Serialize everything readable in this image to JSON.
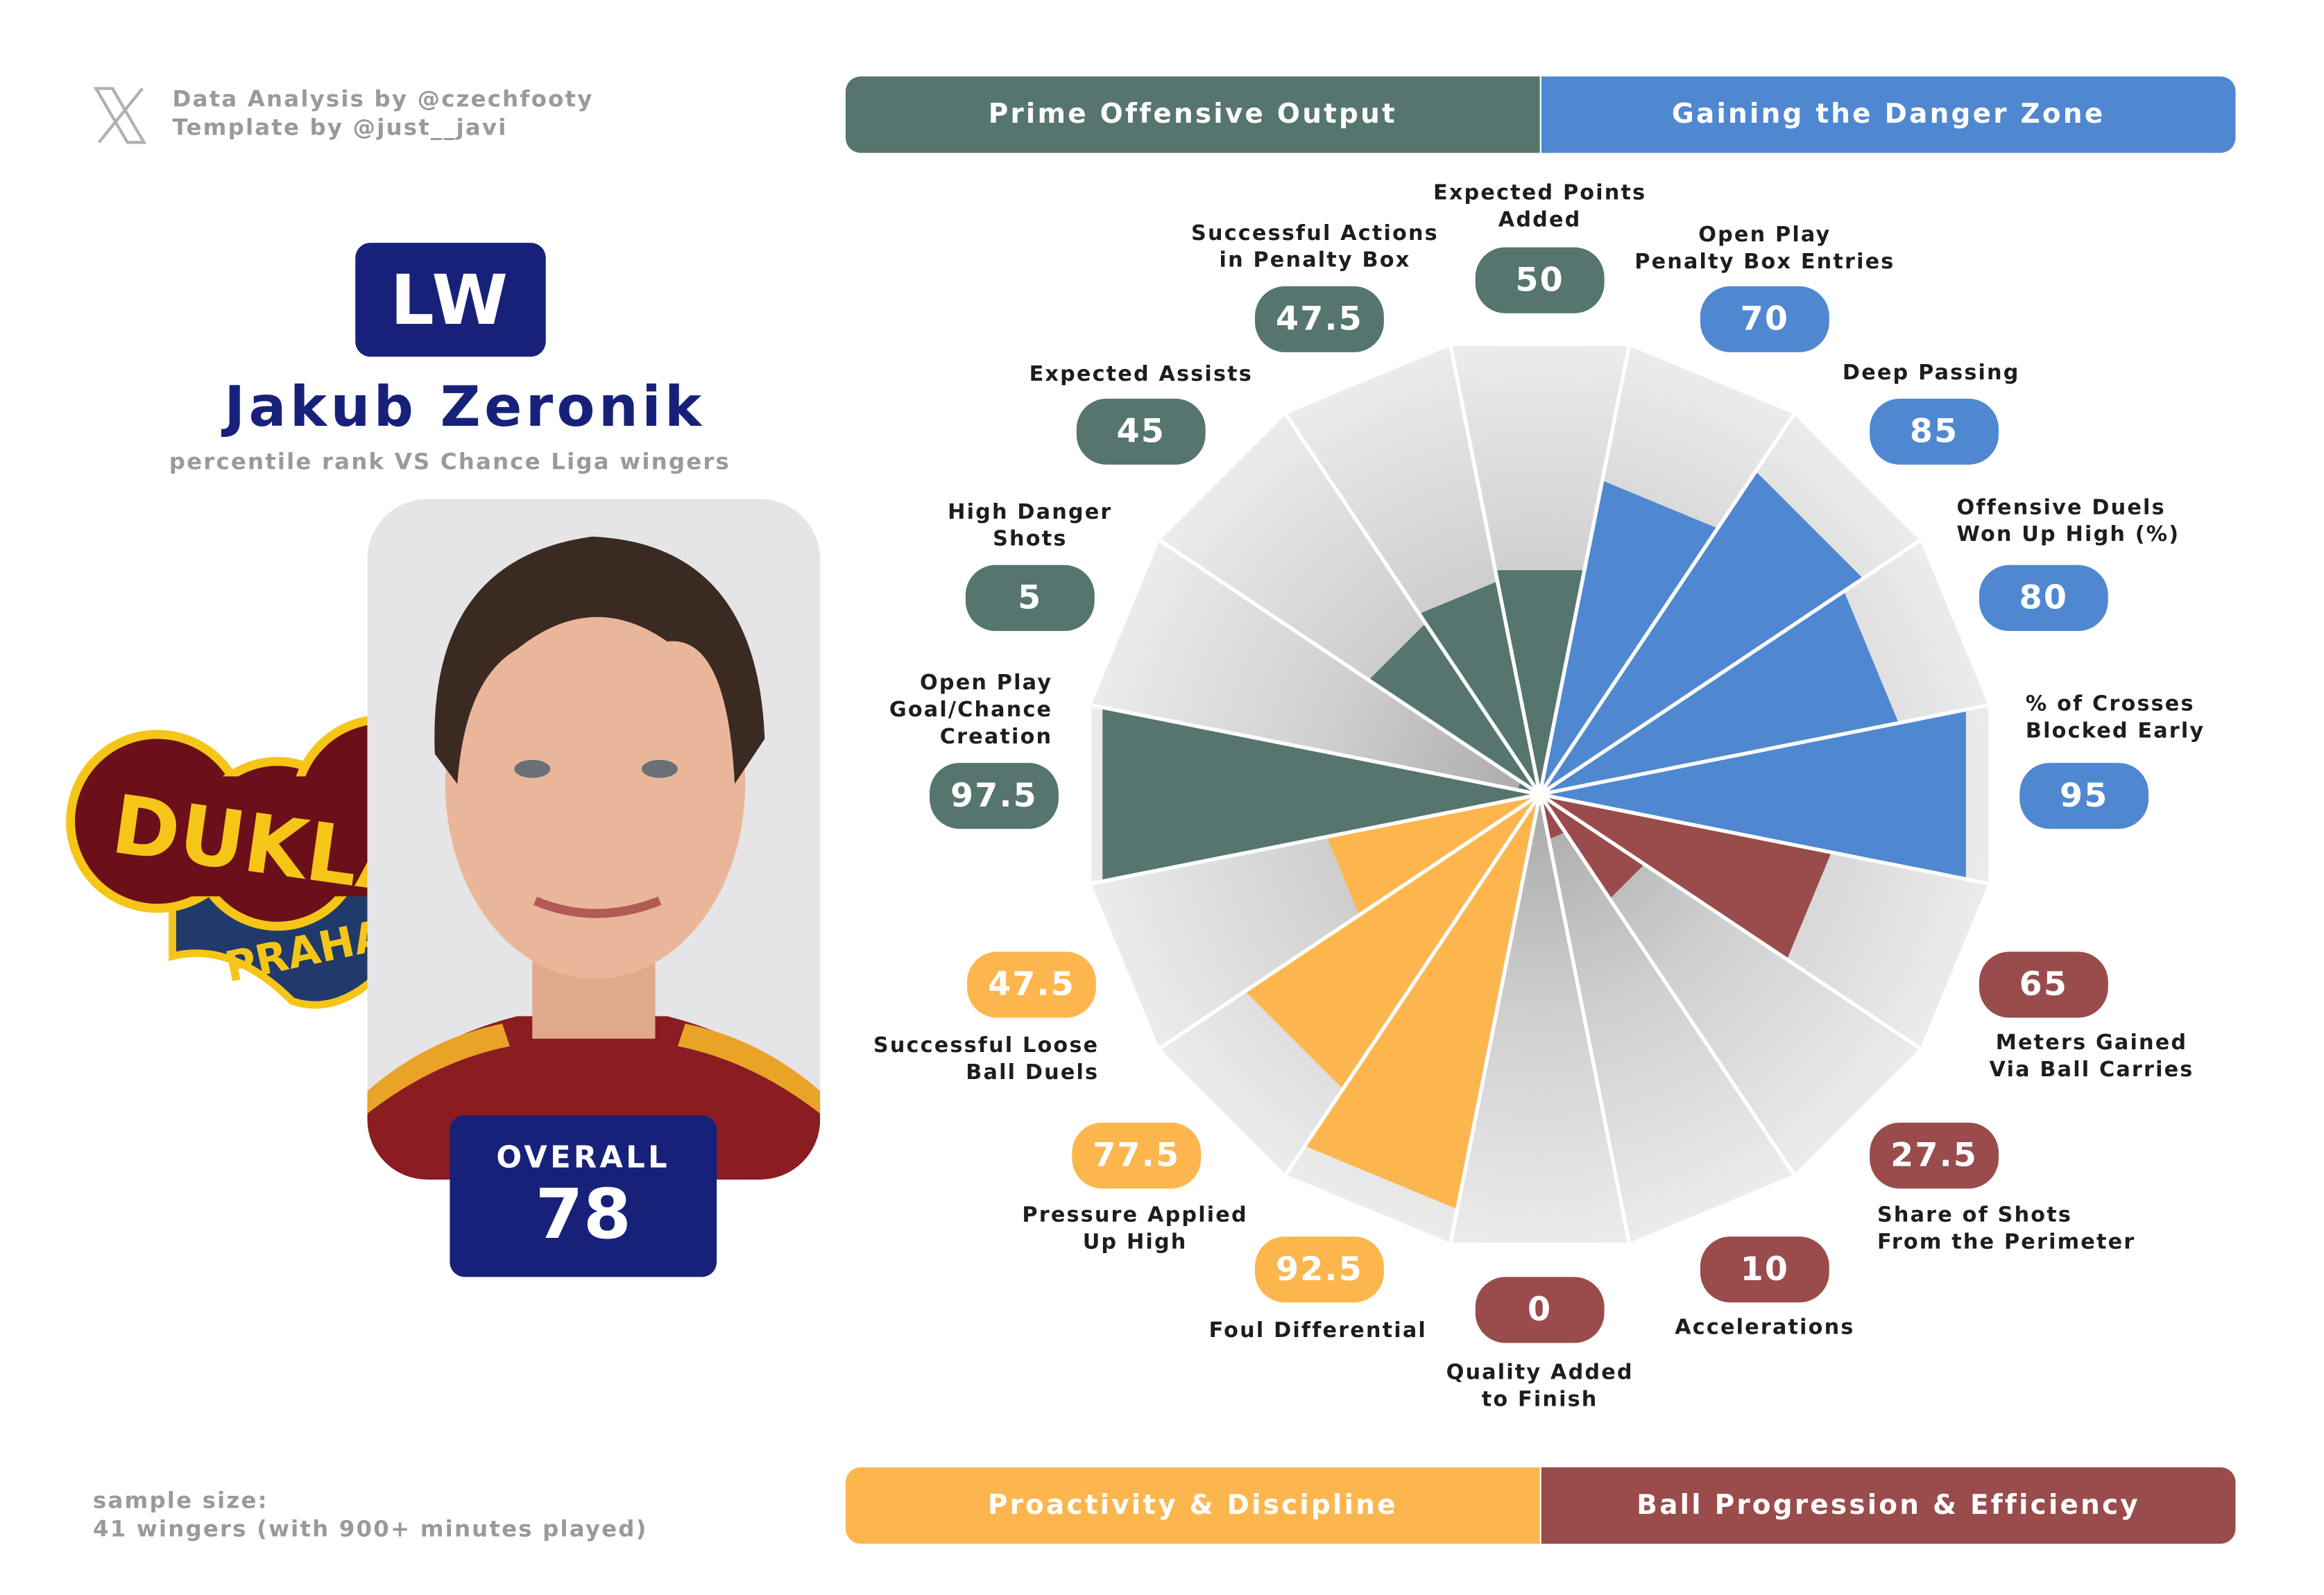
{
  "credits": {
    "line1": "Data Analysis by @czechfooty",
    "line2": "Template by @just__javi"
  },
  "position": "LW",
  "player_name": "Jakub Zeronik",
  "subtitle": "percentile rank VS Chance Liga wingers",
  "club_logo_text": {
    "top": "DUKLA",
    "bottom": "PRAHA"
  },
  "overall": {
    "label": "OVERALL",
    "value": "78"
  },
  "sample": {
    "line1": "sample size:",
    "line2": "41 wingers (with 900+ minutes played)"
  },
  "categories": [
    {
      "name": "Prime Offensive Output",
      "color": "#56756f"
    },
    {
      "name": "Gaining the Danger Zone",
      "color": "#4f88d1"
    },
    {
      "name": "Proactivity & Discipline",
      "color": "#fdb64e"
    },
    {
      "name": "Ball Progression & Efficiency",
      "color": "#9a4b4b"
    }
  ],
  "chart_data": {
    "type": "radar-pizza",
    "range": [
      0,
      100
    ],
    "metrics": [
      {
        "label": "Expected Points\nAdded",
        "value": 50,
        "category": 0
      },
      {
        "label": "Open Play\nPenalty Box Entries",
        "value": 70,
        "category": 1
      },
      {
        "label": "Deep Passing",
        "value": 85,
        "category": 1
      },
      {
        "label": "Offensive Duels\nWon Up High (%)",
        "value": 80,
        "category": 1
      },
      {
        "label": "% of Crosses\nBlocked Early",
        "value": 95,
        "category": 1
      },
      {
        "label": "Meters Gained\nVia Ball Carries",
        "value": 65,
        "category": 3
      },
      {
        "label": "Share of Shots\nFrom the Perimeter",
        "value": 27.5,
        "category": 3
      },
      {
        "label": "Accelerations",
        "value": 10,
        "category": 3
      },
      {
        "label": "Quality Added\nto Finish",
        "value": 0,
        "category": 3
      },
      {
        "label": "Foul Differential",
        "value": 92.5,
        "category": 2
      },
      {
        "label": "Pressure Applied\nUp High",
        "value": 77.5,
        "category": 2
      },
      {
        "label": "Successful Loose\nBall Duels",
        "value": 47.5,
        "category": 2
      },
      {
        "label": "Open Play\nGoal/Chance\nCreation",
        "value": 97.5,
        "category": 0
      },
      {
        "label": "High Danger\nShots",
        "value": 5,
        "category": 0
      },
      {
        "label": "Expected Assists",
        "value": 45,
        "category": 0
      },
      {
        "label": "Successful Actions\nin Penalty Box",
        "value": 47.5,
        "category": 0
      }
    ]
  }
}
